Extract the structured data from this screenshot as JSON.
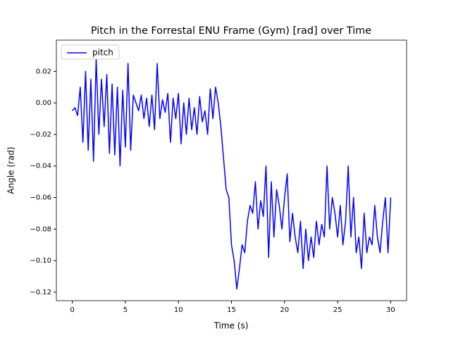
{
  "chart_data": {
    "type": "line",
    "title": "Pitch in the Forrestal ENU Frame (Gym) [rad] over Time",
    "x_label": "Time (s)",
    "y_label": "Angle (rad)",
    "x": [
      0,
      0.25,
      0.5,
      0.75,
      1,
      1.25,
      1.5,
      1.75,
      2,
      2.25,
      2.5,
      2.75,
      3,
      3.25,
      3.5,
      3.75,
      4,
      4.25,
      4.5,
      4.75,
      5,
      5.25,
      5.5,
      5.75,
      6,
      6.25,
      6.5,
      6.75,
      7,
      7.25,
      7.5,
      7.75,
      8,
      8.25,
      8.5,
      8.75,
      9,
      9.25,
      9.5,
      9.75,
      10,
      10.25,
      10.5,
      10.75,
      11,
      11.25,
      11.5,
      11.75,
      12,
      12.25,
      12.5,
      12.75,
      13,
      13.25,
      13.5,
      13.75,
      14,
      14.25,
      14.5,
      14.75,
      15,
      15.25,
      15.5,
      15.75,
      16,
      16.25,
      16.5,
      16.75,
      17,
      17.25,
      17.5,
      17.75,
      18,
      18.25,
      18.5,
      18.75,
      19,
      19.25,
      19.5,
      19.75,
      20,
      20.25,
      20.5,
      20.75,
      21,
      21.25,
      21.5,
      21.75,
      22,
      22.25,
      22.5,
      22.75,
      23,
      23.25,
      23.5,
      23.75,
      24,
      24.25,
      24.5,
      24.75,
      25,
      25.25,
      25.5,
      25.75,
      26,
      26.25,
      26.5,
      26.75,
      27,
      27.25,
      27.5,
      27.75,
      28,
      28.25,
      28.5,
      28.75,
      29,
      29.25,
      29.5,
      29.75,
      30
    ],
    "series": [
      {
        "name": "pitch",
        "color": "#0000ff",
        "values": [
          -0.005,
          -0.003,
          -0.008,
          0.01,
          -0.025,
          0.02,
          -0.03,
          0.015,
          -0.037,
          0.028,
          -0.02,
          0.015,
          -0.015,
          0.018,
          -0.032,
          0.012,
          -0.033,
          0.01,
          -0.04,
          0.008,
          -0.028,
          0.025,
          -0.03,
          0.005,
          0.0,
          -0.005,
          0.005,
          -0.01,
          0.003,
          -0.015,
          0.005,
          -0.017,
          0.025,
          -0.01,
          0.002,
          -0.006,
          0.006,
          -0.025,
          0.003,
          -0.01,
          0.006,
          -0.026,
          0.0,
          -0.02,
          0.003,
          -0.017,
          -0.003,
          -0.02,
          0.004,
          -0.012,
          -0.005,
          -0.02,
          0.009,
          -0.01,
          0.01,
          0.0,
          -0.015,
          -0.035,
          -0.055,
          -0.06,
          -0.09,
          -0.1,
          -0.118,
          -0.105,
          -0.09,
          -0.095,
          -0.075,
          -0.065,
          -0.07,
          -0.05,
          -0.08,
          -0.062,
          -0.072,
          -0.04,
          -0.098,
          -0.05,
          -0.085,
          -0.055,
          -0.065,
          -0.08,
          -0.06,
          -0.045,
          -0.088,
          -0.07,
          -0.085,
          -0.095,
          -0.075,
          -0.105,
          -0.08,
          -0.1,
          -0.085,
          -0.098,
          -0.075,
          -0.09,
          -0.077,
          -0.085,
          -0.04,
          -0.08,
          -0.06,
          -0.07,
          -0.085,
          -0.065,
          -0.09,
          -0.075,
          -0.04,
          -0.085,
          -0.06,
          -0.095,
          -0.085,
          -0.105,
          -0.07,
          -0.095,
          -0.085,
          -0.09,
          -0.065,
          -0.085,
          -0.095,
          -0.075,
          -0.06,
          -0.095,
          -0.06
        ]
      }
    ],
    "xlim": [
      -1.5,
      31.5
    ],
    "ylim": [
      -0.1254,
      0.0398
    ],
    "xticks": [
      0,
      5,
      10,
      15,
      20,
      25,
      30
    ],
    "yticks": [
      {
        "value": 0.02,
        "label": "0.02"
      },
      {
        "value": 0,
        "label": "0.00"
      },
      {
        "value": -0.02,
        "label": "−0.02"
      },
      {
        "value": -0.04,
        "label": "−0.04"
      },
      {
        "value": -0.06,
        "label": "−0.06"
      },
      {
        "value": -0.08,
        "label": "−0.08"
      },
      {
        "value": -0.1,
        "label": "−0.10"
      },
      {
        "value": -0.12,
        "label": "−0.12"
      }
    ],
    "legend": "upper left",
    "grid": false
  }
}
